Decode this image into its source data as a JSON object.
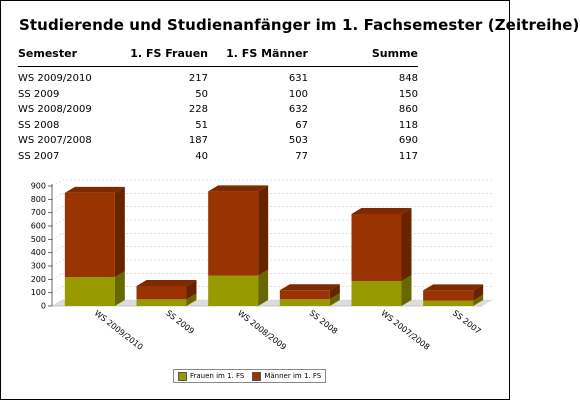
{
  "title": "Studierende und Studienanfänger im 1. Fachsemester (Zeitreihe)",
  "table": {
    "headers": [
      "Semester",
      "1. FS Frauen",
      "1. FS Männer",
      "Summe"
    ],
    "rows": [
      [
        "WS 2009/2010",
        "217",
        "631",
        "848"
      ],
      [
        "SS 2009",
        "50",
        "100",
        "150"
      ],
      [
        "WS 2008/2009",
        "228",
        "632",
        "860"
      ],
      [
        "SS 2008",
        "51",
        "67",
        "118"
      ],
      [
        "WS 2007/2008",
        "187",
        "503",
        "690"
      ],
      [
        "SS 2007",
        "40",
        "77",
        "117"
      ]
    ]
  },
  "chart_data": {
    "type": "bar",
    "stacked": true,
    "categories": [
      "WS 2009/2010",
      "SS 2009",
      "WS 2008/2009",
      "SS 2008",
      "WS 2007/2008",
      "SS 2007"
    ],
    "series": [
      {
        "name": "Frauen im 1. FS",
        "values": [
          217,
          50,
          228,
          51,
          187,
          40
        ],
        "color": "#999900"
      },
      {
        "name": "Männer im 1. FS",
        "values": [
          631,
          100,
          632,
          67,
          503,
          77
        ],
        "color": "#993300"
      }
    ],
    "ylim": [
      0,
      900
    ],
    "yticks": [
      0,
      100,
      200,
      300,
      400,
      500,
      600,
      700,
      800,
      900
    ],
    "grid": true,
    "legend": "bottom"
  }
}
